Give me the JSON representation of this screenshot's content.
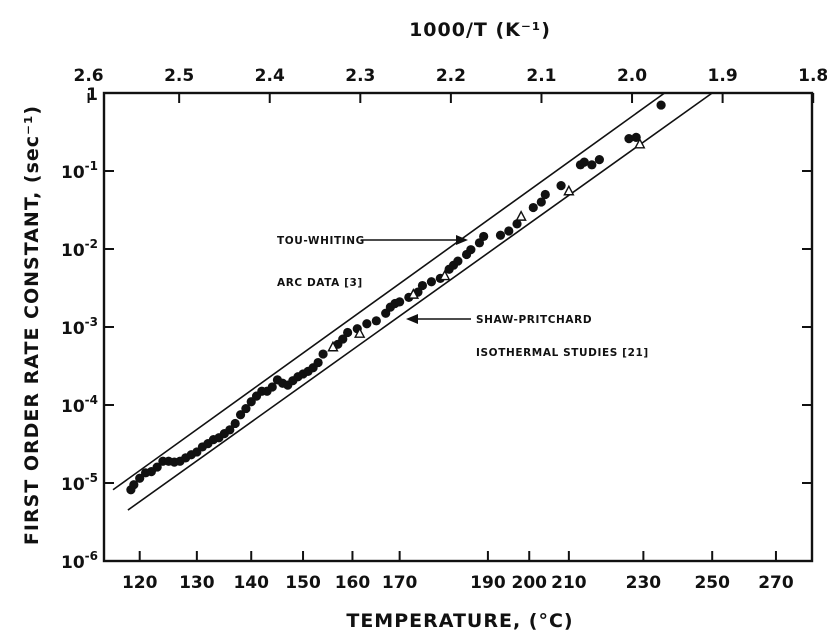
{
  "chart_data": {
    "type": "scatter",
    "title": "",
    "xlabel": "TEMPERATURE, (°C)",
    "ylabel": "FIRST ORDER RATE CONSTANT, (sec⁻¹)",
    "x2label": "1000/T (K⁻¹)",
    "x_scale": "reciprocal-kelvin",
    "y_scale": "log",
    "xlim": [
      114,
      282
    ],
    "ylim": [
      1e-06,
      1
    ],
    "x_ticks": [
      120,
      130,
      140,
      150,
      160,
      170,
      190,
      200,
      210,
      230,
      250,
      270
    ],
    "x_tick_labels": [
      "120",
      "130",
      "140",
      "150",
      "160",
      "170",
      "190",
      "200",
      "210",
      "230",
      "250",
      "270"
    ],
    "x2_ticks": [
      2.6,
      2.5,
      2.4,
      2.3,
      2.2,
      2.1,
      2.0,
      1.9,
      1.8
    ],
    "x2_tick_labels": [
      "2.6",
      "2.5",
      "2.4",
      "2.3",
      "2.2",
      "2.1",
      "2.0",
      "1.9",
      "1.8"
    ],
    "y_ticks": [
      1e-06,
      1e-05,
      0.0001,
      0.001,
      0.01,
      0.1,
      1
    ],
    "y_tick_labels": [
      "10-6",
      "10-5",
      "10-4",
      "10-3",
      "10-2",
      "10-1",
      "1"
    ],
    "grid": false,
    "series": [
      {
        "marker": "filled-circle",
        "points": [
          [
            118.5,
            8.2e-06
          ],
          [
            119.0,
            9.5e-06
          ],
          [
            120.0,
            1.15e-05
          ],
          [
            121.0,
            1.35e-05
          ],
          [
            122.0,
            1.4e-05
          ],
          [
            123.0,
            1.6e-05
          ],
          [
            124.0,
            1.9e-05
          ],
          [
            125.0,
            1.9e-05
          ],
          [
            126.0,
            1.85e-05
          ],
          [
            127.0,
            1.9e-05
          ],
          [
            128.0,
            2.1e-05
          ],
          [
            129.0,
            2.3e-05
          ],
          [
            130.0,
            2.5e-05
          ],
          [
            131.0,
            2.9e-05
          ],
          [
            132.0,
            3.2e-05
          ],
          [
            133.0,
            3.6e-05
          ],
          [
            134.0,
            3.8e-05
          ],
          [
            135.0,
            4.3e-05
          ],
          [
            136.0,
            4.8e-05
          ],
          [
            137.0,
            5.8e-05
          ],
          [
            138.0,
            7.5e-05
          ],
          [
            139.0,
            9e-05
          ],
          [
            140.0,
            0.00011
          ],
          [
            141.0,
            0.00013
          ],
          [
            142.0,
            0.00015
          ],
          [
            143.0,
            0.00015
          ],
          [
            144.0,
            0.00017
          ],
          [
            145.0,
            0.00021
          ],
          [
            146.0,
            0.00019
          ],
          [
            147.0,
            0.00018
          ],
          [
            148.0,
            0.000205
          ],
          [
            149.0,
            0.00023
          ],
          [
            150.0,
            0.00025
          ],
          [
            151.0,
            0.00027
          ],
          [
            152.0,
            0.0003
          ],
          [
            153.0,
            0.00035
          ],
          [
            154.0,
            0.00045
          ],
          [
            157.0,
            0.0006
          ],
          [
            158.0,
            0.0007
          ],
          [
            159.0,
            0.00085
          ],
          [
            161.0,
            0.00095
          ],
          [
            163.0,
            0.0011
          ],
          [
            165.0,
            0.0012
          ],
          [
            167.0,
            0.0015
          ],
          [
            168.0,
            0.0018
          ],
          [
            169.0,
            0.002
          ],
          [
            170.0,
            0.0021
          ],
          [
            172.0,
            0.0024
          ],
          [
            174.0,
            0.0028
          ],
          [
            175.0,
            0.0034
          ],
          [
            177.0,
            0.0038
          ],
          [
            179.0,
            0.0042
          ],
          [
            181.0,
            0.0055
          ],
          [
            182.0,
            0.0062
          ],
          [
            183.0,
            0.007
          ],
          [
            185.0,
            0.0085
          ],
          [
            186.0,
            0.0098
          ],
          [
            188.0,
            0.012
          ],
          [
            189.0,
            0.0145
          ],
          [
            193.0,
            0.015
          ],
          [
            195.0,
            0.017
          ],
          [
            197.0,
            0.021
          ],
          [
            201.0,
            0.034
          ],
          [
            203.0,
            0.04
          ],
          [
            204.0,
            0.05
          ],
          [
            208.0,
            0.065
          ],
          [
            213.0,
            0.12
          ],
          [
            214.0,
            0.13
          ],
          [
            216.0,
            0.12
          ],
          [
            218.0,
            0.14
          ],
          [
            226.0,
            0.26
          ],
          [
            228.0,
            0.27
          ],
          [
            235.0,
            0.7
          ]
        ]
      },
      {
        "marker": "open-triangle",
        "points": [
          [
            156.0,
            0.00055
          ],
          [
            161.5,
            0.00082
          ],
          [
            173.0,
            0.0026
          ],
          [
            180.0,
            0.0045
          ],
          [
            198.0,
            0.026
          ],
          [
            210.0,
            0.055
          ],
          [
            229.0,
            0.22
          ]
        ]
      }
    ],
    "reference_lines": [
      {
        "from": [
          115.5,
          8.2e-06
        ],
        "to": [
          236.0,
          1.0
        ]
      },
      {
        "from": [
          118.0,
          4.5e-06
        ],
        "to": [
          250.0,
          1.0
        ]
      }
    ],
    "annotations": [
      {
        "lines": [
          "TOU-WHITING",
          "ARC DATA [3]"
        ],
        "points_to": [
          186.5,
          0.0115
        ]
      },
      {
        "lines": [
          "SHAW-PRITCHARD",
          "ISOTHERMAL STUDIES [21]"
        ],
        "points_to": [
          167.5,
          0.00112
        ]
      }
    ]
  }
}
